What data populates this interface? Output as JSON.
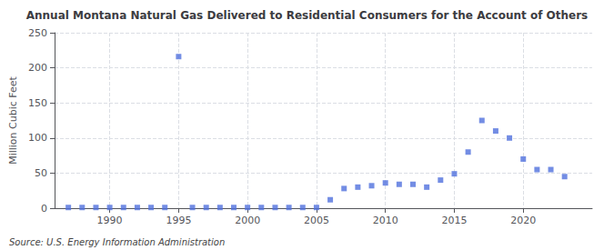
{
  "chart_data": {
    "type": "scatter",
    "title": "Annual Montana Natural Gas Delivered to Residential Consumers for the Account of Others",
    "ylabel": "Million Cubic Feet",
    "annotations": [
      "Source: U.S. Energy Information Administration"
    ],
    "x": [
      1987,
      1988,
      1989,
      1990,
      1991,
      1992,
      1993,
      1994,
      1995,
      1996,
      1997,
      1998,
      1999,
      2000,
      2001,
      2002,
      2003,
      2004,
      2005,
      2006,
      2007,
      2008,
      2009,
      2010,
      2011,
      2012,
      2013,
      2014,
      2015,
      2016,
      2017,
      2018,
      2019,
      2020,
      2021,
      2022,
      2023
    ],
    "values": [
      1,
      1,
      1,
      1,
      1,
      1,
      1,
      1,
      216,
      1,
      1,
      1,
      1,
      1,
      1,
      1,
      1,
      1,
      1,
      12,
      28,
      30,
      32,
      36,
      34,
      34,
      30,
      40,
      49,
      80,
      125,
      110,
      100,
      70,
      55,
      55,
      45
    ],
    "marker": "square",
    "xlim": [
      1986,
      2025
    ],
    "xticks": [
      1990,
      1995,
      2000,
      2005,
      2010,
      2015,
      2020
    ],
    "ylim": [
      0,
      250
    ],
    "yticks": [
      0,
      50,
      100,
      150,
      200,
      250
    ],
    "grid": true
  }
}
